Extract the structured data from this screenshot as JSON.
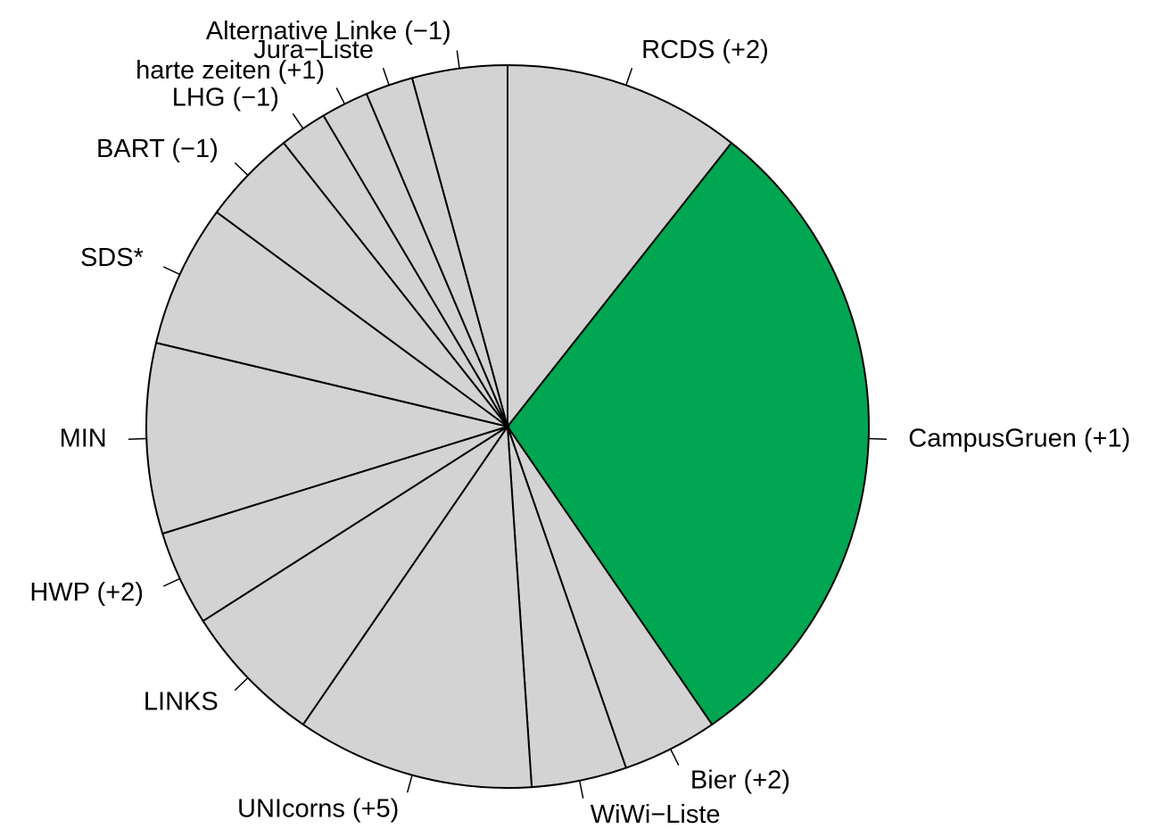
{
  "chart_data": {
    "type": "pie",
    "categories": [
      "RCDS (+2)",
      "CampusGruen (+1)",
      "Bier (+2)",
      "WiWi−Liste",
      "UNIcorns (+5)",
      "LINKS",
      "HWP (+2)",
      "MIN",
      "SDS*",
      "BART (−1)",
      "LHG (−1)",
      "harte zeiten (+1)",
      "Jura−Liste",
      "Alternative Linke (−1)"
    ],
    "values": [
      5,
      14,
      2,
      2,
      5,
      3,
      2,
      4,
      3,
      2,
      1,
      1,
      1,
      2
    ],
    "colors": [
      "#d3d3d3",
      "#00a651",
      "#d3d3d3",
      "#d3d3d3",
      "#d3d3d3",
      "#d3d3d3",
      "#d3d3d3",
      "#d3d3d3",
      "#d3d3d3",
      "#d3d3d3",
      "#d3d3d3",
      "#d3d3d3",
      "#d3d3d3",
      "#d3d3d3"
    ],
    "clockwise": true
  }
}
